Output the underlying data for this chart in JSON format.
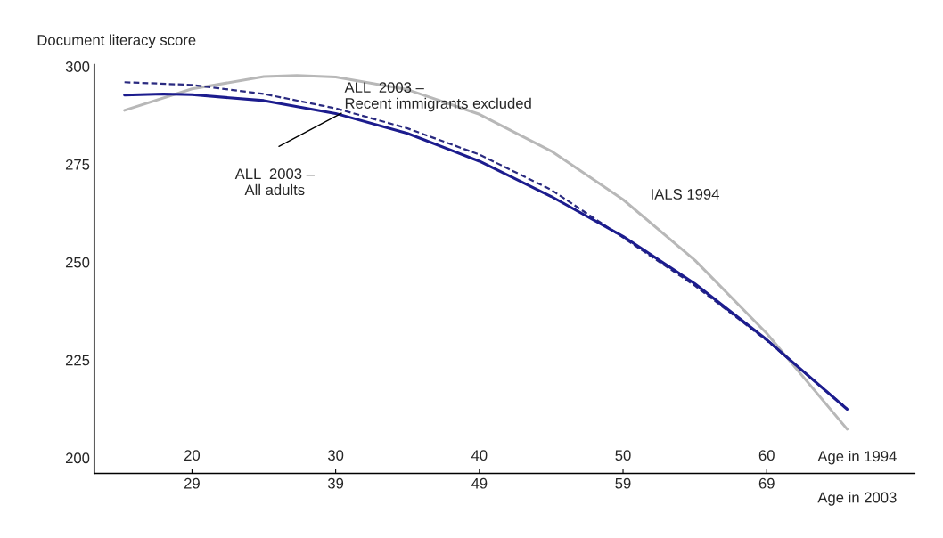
{
  "chart_data": {
    "type": "line",
    "ylabel": "Document literacy score",
    "xlabel": "Age in 2003",
    "x2label": "Age in 1994",
    "xlim": [
      22.2,
      79.3
    ],
    "xticks": [
      29,
      39,
      49,
      59,
      69
    ],
    "x2lim": [
      13.2,
      70.3
    ],
    "x2ticks": [
      20,
      30,
      40,
      50,
      60
    ],
    "ylim": [
      196,
      300.5
    ],
    "yticks": [
      200,
      225,
      250,
      275,
      300
    ],
    "grid": false,
    "series": [
      {
        "color": "#b8b8b8",
        "line_style": "solid",
        "x": [
          24.3,
          29,
          34,
          36.3,
          39,
          44,
          49,
          54,
          59,
          64,
          69,
          74.6
        ],
        "values": [
          288.8,
          294.3,
          297.4,
          297.7,
          297.3,
          294.1,
          287.8,
          278.4,
          266,
          250.5,
          231.8,
          207.3
        ]
      },
      {
        "color": "#2a2a80",
        "line_style": "dashed",
        "x": [
          24.3,
          29,
          34,
          39,
          44,
          49,
          54,
          59,
          64,
          69,
          74.6
        ],
        "values": [
          296,
          295.3,
          293,
          289.3,
          284.2,
          277.5,
          268.5,
          256.3,
          244,
          230,
          212.5
        ]
      },
      {
        "color": "#1c1c8e",
        "line_style": "solid",
        "x": [
          24.3,
          27,
          29,
          34,
          39,
          44,
          49,
          54,
          59,
          64,
          69,
          74.6
        ],
        "values": [
          292.7,
          293,
          292.8,
          291.3,
          288,
          282.9,
          275.8,
          266.8,
          256.6,
          244.5,
          230.2,
          212.4
        ]
      }
    ],
    "annotations": [
      "ALL  2003 –\nRecent immigrants excluded",
      "ALL  2003 –\nAll adults",
      "IALS 1994"
    ]
  }
}
